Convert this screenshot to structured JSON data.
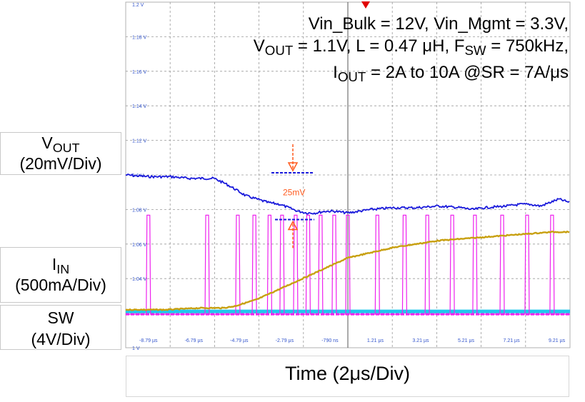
{
  "conditions": {
    "line1": "Vin_Bulk = 12V, Vin_Mgmt = 3.3V,",
    "line2_v": "V",
    "line2_v_sub": "OUT",
    "line2_a": " = 1.1V, L = 0.47 ",
    "line2_mu": "μ",
    "line2_b": "H, F",
    "line2_f_sub": "SW",
    "line2_c": " = 750kHz,",
    "line3_i": "I",
    "line3_i_sub": "OUT",
    "line3_a": " = 2A to 10A @SR = 7A/",
    "line3_mu": "μ",
    "line3_b": "s"
  },
  "channels": {
    "vout": {
      "name": "V",
      "name_sub": "OUT",
      "scale": "(20mV/Div)",
      "color": "#1a1adb"
    },
    "iin": {
      "name": "I",
      "name_sub": "IN",
      "scale": "(500mA/Div)",
      "color": "#c8a010"
    },
    "sw": {
      "name": "SW",
      "scale": "(4V/Div)",
      "color": "#ee22ee"
    },
    "ref": {
      "color": "#1ec8ee"
    }
  },
  "annotation": {
    "label": "25mV",
    "color": "#ff5a1e"
  },
  "time_axis": {
    "label": "Time (2μs/Div)",
    "mu": "μ"
  },
  "trigger_marker": {
    "color": "#e00000"
  },
  "chart_data": {
    "type": "line",
    "title": "",
    "xlabel": "Time (2μs/Div)",
    "ylabel": "",
    "xlim": [
      -9.79,
      9.79
    ],
    "ylim": [
      1.0,
      1.2
    ],
    "x_tick_labels": [
      "-8.79 µs",
      "-6.79 µs",
      "-4.79 µs",
      "-2.79 µs",
      "-790 ns",
      "1.21 µs",
      "3.21 µs",
      "5.21 µs",
      "7.21 µs",
      "9.21 µs"
    ],
    "x_ticks": [
      -8.79,
      -6.79,
      -4.79,
      -2.79,
      -0.79,
      1.21,
      3.21,
      5.21,
      7.21,
      9.21
    ],
    "y_ticks": [
      1.2,
      1.18,
      1.16,
      1.14,
      1.12,
      1.1,
      1.08,
      1.06,
      1.04,
      1.02,
      1.0
    ],
    "y_tick_labels": [
      "1.2 V",
      "1.18 V",
      "1.16 V",
      "1.14 V",
      "1.12 V",
      "1.1 V",
      "1.08 V",
      "1.06 V",
      "1.04 V",
      "",
      "1 V"
    ],
    "grid": true,
    "series": [
      {
        "name": "VOUT",
        "x": [
          -9.79,
          -8.8,
          -7.8,
          -7.0,
          -6.5,
          -5.9,
          -5.4,
          -5.0,
          -4.5,
          -4.0,
          -3.5,
          -3.0,
          -2.6,
          -2.2,
          -1.8,
          -1.4,
          -1.0,
          -0.6,
          0.0,
          1.0,
          2.0,
          3.0,
          4.0,
          5.0,
          5.5,
          6.0,
          7.0,
          7.6,
          8.0,
          8.5,
          8.9,
          9.3,
          9.79
        ],
        "y": [
          1.1,
          1.099,
          1.099,
          1.098,
          1.098,
          1.098,
          1.095,
          1.092,
          1.088,
          1.086,
          1.084,
          1.083,
          1.081,
          1.079,
          1.078,
          1.078,
          1.079,
          1.079,
          1.078,
          1.08,
          1.081,
          1.081,
          1.082,
          1.081,
          1.08,
          1.081,
          1.082,
          1.083,
          1.083,
          1.082,
          1.084,
          1.086,
          1.084
        ]
      },
      {
        "name": "IIN",
        "x": [
          -9.79,
          -8.0,
          -6.5,
          -5.5,
          -5.0,
          -4.5,
          -4.0,
          -3.5,
          -3.0,
          -2.5,
          -2.0,
          -1.5,
          -1.0,
          -0.5,
          0.0,
          1.0,
          2.0,
          3.0,
          4.0,
          5.0,
          6.0,
          7.0,
          8.0,
          9.0,
          9.79
        ],
        "y": [
          1.022,
          1.022,
          1.023,
          1.023,
          1.024,
          1.026,
          1.028,
          1.031,
          1.034,
          1.037,
          1.04,
          1.043,
          1.046,
          1.049,
          1.052,
          1.055,
          1.058,
          1.06,
          1.062,
          1.063,
          1.064,
          1.065,
          1.066,
          1.067,
          1.067
        ]
      }
    ],
    "sw_pulse_times": [
      -8.79,
      -6.2,
      -4.85,
      -4.12,
      -3.45,
      -2.9,
      -2.3,
      -1.75,
      -1.2,
      -0.6,
      0.0,
      1.3,
      2.5,
      3.5,
      4.6,
      5.6,
      6.8,
      7.9,
      9.0
    ],
    "vout_deviation_mV": 25
  }
}
